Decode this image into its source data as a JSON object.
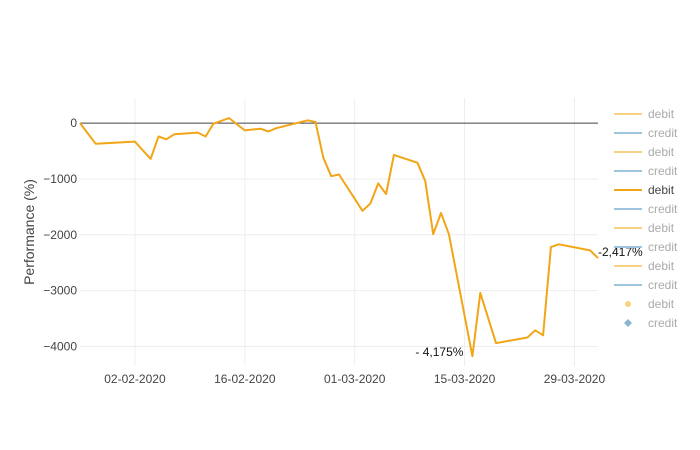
{
  "chart_data": {
    "type": "line",
    "title": "",
    "xlabel": "",
    "ylabel": "Performance (%)",
    "x_tick_labels": [
      "02-02-2020",
      "16-02-2020",
      "01-03-2020",
      "15-03-2020",
      "29-03-2020"
    ],
    "y_ticks": [
      0,
      -1000,
      -2000,
      -3000,
      -4000
    ],
    "y_tick_labels": [
      "0",
      "−1000",
      "−2000",
      "−3000",
      "−4000"
    ],
    "ylim": [
      -4350,
      450
    ],
    "xlim": [
      "2020-01-26",
      "2020-04-01"
    ],
    "grid": true,
    "zero_line": true,
    "legend_position": "right",
    "colors": {
      "debit": "#f2a516",
      "debit_faded": "#f7d286",
      "credit_faded": "#9ec4de",
      "credit_marker": "#8ab6d2",
      "zero_line": "#444444",
      "grid": "#eeeeee"
    },
    "legend": [
      {
        "label": "debit",
        "kind": "line",
        "color": "#f7d286",
        "active": false
      },
      {
        "label": "credit",
        "kind": "line",
        "color": "#9ec4de",
        "active": false
      },
      {
        "label": "debit",
        "kind": "line",
        "color": "#f7d286",
        "active": false
      },
      {
        "label": "credit",
        "kind": "line",
        "color": "#9ec4de",
        "active": false
      },
      {
        "label": "debit",
        "kind": "line",
        "color": "#f2a516",
        "active": true
      },
      {
        "label": "credit",
        "kind": "line",
        "color": "#9ec4de",
        "active": false
      },
      {
        "label": "debit",
        "kind": "line",
        "color": "#f7d286",
        "active": false
      },
      {
        "label": "credit",
        "kind": "line",
        "color": "#9ec4de",
        "active": false
      },
      {
        "label": "debit",
        "kind": "line",
        "color": "#f7d286",
        "active": false
      },
      {
        "label": "credit",
        "kind": "line",
        "color": "#9ec4de",
        "active": false
      },
      {
        "label": "debit",
        "kind": "marker-circle",
        "color": "#f7d286",
        "active": false
      },
      {
        "label": "credit",
        "kind": "marker-diamond",
        "color": "#8ab6d2",
        "active": false
      }
    ],
    "series": [
      {
        "name": "debit",
        "x": [
          "2020-01-26",
          "2020-01-28",
          "2020-02-02",
          "2020-02-04",
          "2020-02-05",
          "2020-02-06",
          "2020-02-07",
          "2020-02-10",
          "2020-02-11",
          "2020-02-12",
          "2020-02-14",
          "2020-02-16",
          "2020-02-18",
          "2020-02-19",
          "2020-02-20",
          "2020-02-24",
          "2020-02-25",
          "2020-02-26",
          "2020-02-27",
          "2020-02-28",
          "2020-03-02",
          "2020-03-03",
          "2020-03-04",
          "2020-03-05",
          "2020-03-06",
          "2020-03-09",
          "2020-03-10",
          "2020-03-11",
          "2020-03-12",
          "2020-03-13",
          "2020-03-16",
          "2020-03-17",
          "2020-03-19",
          "2020-03-23",
          "2020-03-24",
          "2020-03-25",
          "2020-03-26",
          "2020-03-27",
          "2020-03-31",
          "2020-04-01"
        ],
        "y": [
          0,
          -370,
          -330,
          -640,
          -240,
          -290,
          -200,
          -170,
          -240,
          -10,
          90,
          -130,
          -100,
          -150,
          -90,
          50,
          20,
          -620,
          -950,
          -920,
          -1570,
          -1440,
          -1080,
          -1270,
          -570,
          -710,
          -1040,
          -1990,
          -1610,
          -1990,
          -4175,
          -3040,
          -3940,
          -3840,
          -3710,
          -3800,
          -2220,
          -2170,
          -2280,
          -2417
        ]
      }
    ],
    "tail_points": {
      "x": [
        "2020-03-30",
        "2020-03-31",
        "2020-04-01"
      ],
      "note": "shape near end"
    },
    "annotations": [
      {
        "text": "- 4,175%",
        "x": "2020-03-16",
        "y": -4175
      },
      {
        "text": "-2,417%",
        "x": "2020-04-01",
        "y": -2417
      }
    ]
  }
}
